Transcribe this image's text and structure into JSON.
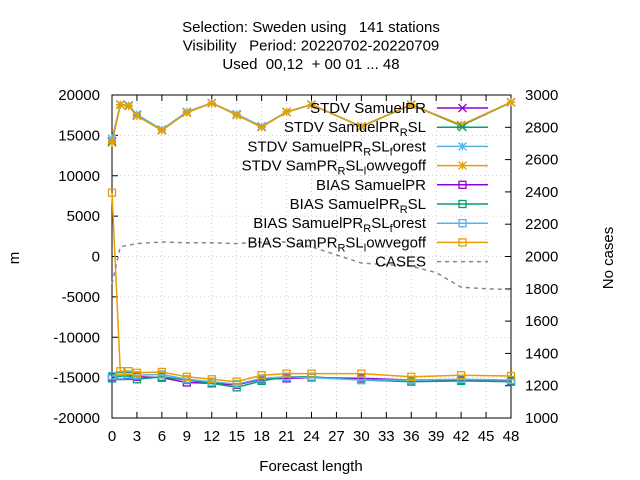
{
  "chart_data": {
    "type": "line",
    "title_lines": [
      "Selection: Sweden using   141 stations",
      "Visibility   Period: 20220702-20220709",
      "Used  00,12  + 00 01 ... 48"
    ],
    "xlabel": "Forecast length",
    "ylabel": "m",
    "y2label": "No cases",
    "xlim": [
      0,
      48
    ],
    "ylim": [
      -20000,
      20000
    ],
    "y2lim": [
      1000,
      3000
    ],
    "x_ticks": [
      0,
      3,
      6,
      9,
      12,
      15,
      18,
      21,
      24,
      27,
      30,
      33,
      36,
      39,
      42,
      45,
      48
    ],
    "y_ticks": [
      -20000,
      -15000,
      -10000,
      -5000,
      0,
      5000,
      10000,
      15000,
      20000
    ],
    "y2_ticks": [
      1000,
      1200,
      1400,
      1600,
      1800,
      2000,
      2200,
      2400,
      2600,
      2800,
      3000
    ],
    "legend_position": "top-right",
    "series": [
      {
        "name": "STDV SamuelPR",
        "color": "#9400d3",
        "marker": "x",
        "axis": "y",
        "points": [
          [
            0,
            14200
          ],
          [
            1,
            18800
          ],
          [
            2,
            18700
          ],
          [
            3,
            17500
          ],
          [
            6,
            15700
          ],
          [
            9,
            17900
          ],
          [
            12,
            19000
          ],
          [
            15,
            17600
          ],
          [
            18,
            16100
          ],
          [
            21,
            17900
          ],
          [
            24,
            18800
          ],
          [
            30,
            16100
          ],
          [
            36,
            18800
          ],
          [
            42,
            16200
          ],
          [
            48,
            19100
          ]
        ]
      },
      {
        "name": "STDV SamuelPR_RSL",
        "color": "#009e73",
        "marker": "star",
        "axis": "y",
        "points": [
          [
            0,
            14300
          ],
          [
            1,
            18800
          ],
          [
            2,
            18700
          ],
          [
            3,
            17500
          ],
          [
            6,
            15700
          ],
          [
            9,
            17900
          ],
          [
            12,
            19000
          ],
          [
            15,
            17600
          ],
          [
            18,
            16100
          ],
          [
            21,
            17900
          ],
          [
            24,
            18800
          ],
          [
            30,
            16100
          ],
          [
            36,
            18800
          ],
          [
            42,
            16200
          ],
          [
            48,
            19100
          ]
        ]
      },
      {
        "name": "STDV SamuelPR_RSL_forest",
        "color": "#56b4e9",
        "marker": "asterisk",
        "axis": "y",
        "points": [
          [
            0,
            14600
          ],
          [
            1,
            18800
          ],
          [
            2,
            18700
          ],
          [
            3,
            17600
          ],
          [
            6,
            15700
          ],
          [
            9,
            17900
          ],
          [
            12,
            19000
          ],
          [
            15,
            17600
          ],
          [
            18,
            16100
          ],
          [
            21,
            17900
          ],
          [
            24,
            18800
          ],
          [
            30,
            16100
          ],
          [
            36,
            18800
          ],
          [
            42,
            16300
          ],
          [
            48,
            19100
          ]
        ]
      },
      {
        "name": "STDV SamPR_RSL_lowvegoff",
        "color": "#e69f00",
        "marker": "asterisk",
        "axis": "y",
        "points": [
          [
            0,
            14100
          ],
          [
            1,
            18800
          ],
          [
            2,
            18600
          ],
          [
            3,
            17400
          ],
          [
            6,
            15600
          ],
          [
            9,
            17800
          ],
          [
            12,
            19000
          ],
          [
            15,
            17500
          ],
          [
            18,
            16000
          ],
          [
            21,
            17900
          ],
          [
            24,
            18800
          ],
          [
            30,
            16100
          ],
          [
            36,
            18800
          ],
          [
            42,
            16300
          ],
          [
            48,
            19100
          ]
        ]
      },
      {
        "name": "BIAS SamuelPR",
        "color": "#9400d3",
        "marker": "square",
        "axis": "y",
        "points": [
          [
            0,
            -14900
          ],
          [
            1,
            -14800
          ],
          [
            2,
            -14700
          ],
          [
            3,
            -14900
          ],
          [
            6,
            -15000
          ],
          [
            9,
            -15600
          ],
          [
            12,
            -15700
          ],
          [
            15,
            -15900
          ],
          [
            18,
            -15200
          ],
          [
            21,
            -15100
          ],
          [
            24,
            -15000
          ],
          [
            30,
            -15100
          ],
          [
            36,
            -15300
          ],
          [
            42,
            -15300
          ],
          [
            48,
            -15400
          ]
        ]
      },
      {
        "name": "BIAS SamuelPR_RSL",
        "color": "#009e73",
        "marker": "square",
        "axis": "y",
        "points": [
          [
            0,
            -15100
          ],
          [
            1,
            -14800
          ],
          [
            2,
            -14800
          ],
          [
            3,
            -15200
          ],
          [
            6,
            -14900
          ],
          [
            9,
            -15300
          ],
          [
            12,
            -15700
          ],
          [
            15,
            -16200
          ],
          [
            18,
            -15400
          ],
          [
            21,
            -14900
          ],
          [
            24,
            -14900
          ],
          [
            30,
            -15300
          ],
          [
            36,
            -15500
          ],
          [
            42,
            -15400
          ],
          [
            48,
            -15500
          ]
        ]
      },
      {
        "name": "BIAS SamuelPR_RSL_forest",
        "color": "#56b4e9",
        "marker": "square",
        "axis": "y",
        "points": [
          [
            0,
            -14800
          ],
          [
            1,
            -14700
          ],
          [
            2,
            -14600
          ],
          [
            3,
            -14700
          ],
          [
            6,
            -14600
          ],
          [
            9,
            -15200
          ],
          [
            12,
            -15500
          ],
          [
            15,
            -15800
          ],
          [
            18,
            -15100
          ],
          [
            21,
            -14900
          ],
          [
            24,
            -15000
          ],
          [
            30,
            -15300
          ],
          [
            36,
            -15300
          ],
          [
            42,
            -15200
          ],
          [
            48,
            -15300
          ]
        ]
      },
      {
        "name": "BIAS SamPR_RSL_lowvegoff",
        "color": "#e69f00",
        "marker": "square",
        "axis": "y",
        "points": [
          [
            0,
            7900
          ],
          [
            1,
            -14200
          ],
          [
            2,
            -14200
          ],
          [
            3,
            -14400
          ],
          [
            6,
            -14300
          ],
          [
            9,
            -14900
          ],
          [
            12,
            -15200
          ],
          [
            15,
            -15500
          ],
          [
            18,
            -14700
          ],
          [
            21,
            -14500
          ],
          [
            24,
            -14500
          ],
          [
            30,
            -14500
          ],
          [
            36,
            -14900
          ],
          [
            42,
            -14700
          ],
          [
            48,
            -14800
          ]
        ]
      },
      {
        "name": "CASES",
        "color": "#888888",
        "marker": "none",
        "dashed": true,
        "axis": "y2",
        "points": [
          [
            0,
            1830
          ],
          [
            1,
            2060
          ],
          [
            3,
            2080
          ],
          [
            6,
            2090
          ],
          [
            9,
            2085
          ],
          [
            12,
            2085
          ],
          [
            15,
            2080
          ],
          [
            18,
            2090
          ],
          [
            21,
            2090
          ],
          [
            24,
            2060
          ],
          [
            27,
            2010
          ],
          [
            30,
            1960
          ],
          [
            33,
            1950
          ],
          [
            36,
            1940
          ],
          [
            39,
            1900
          ],
          [
            42,
            1810
          ],
          [
            45,
            1800
          ],
          [
            48,
            1795
          ]
        ]
      }
    ]
  }
}
